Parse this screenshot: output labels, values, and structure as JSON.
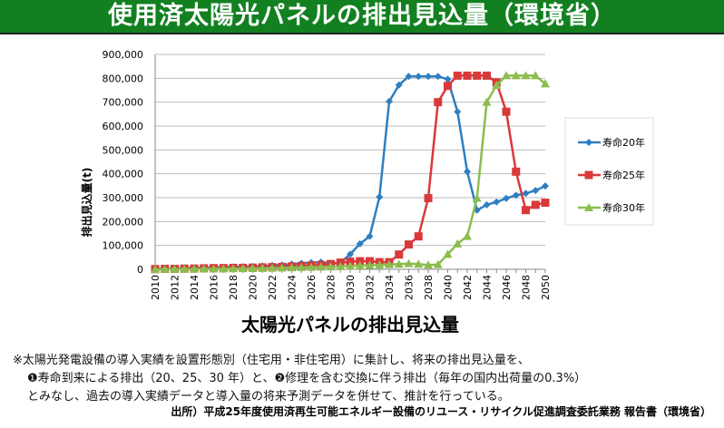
{
  "title": "使用済太陽光パネルの排出見込量（環境省）",
  "chart_data": {
    "type": "line",
    "title": "太陽光パネルの排出見込量",
    "ylabel": "排出見込量(t)",
    "xlabel": "",
    "ylim": [
      0,
      900000
    ],
    "yticks": [
      "0",
      "100,000",
      "200,000",
      "300,000",
      "400,000",
      "500,000",
      "600,000",
      "700,000",
      "800,000",
      "900,000"
    ],
    "x": [
      2010,
      2011,
      2012,
      2013,
      2014,
      2015,
      2016,
      2017,
      2018,
      2019,
      2020,
      2021,
      2022,
      2023,
      2024,
      2025,
      2026,
      2027,
      2028,
      2029,
      2030,
      2031,
      2032,
      2033,
      2034,
      2035,
      2036,
      2037,
      2038,
      2039,
      2040,
      2041,
      2042,
      2043,
      2044,
      2045,
      2046,
      2047,
      2048,
      2049,
      2050
    ],
    "xticks": [
      "2010",
      "2012",
      "2014",
      "2016",
      "2018",
      "2020",
      "2022",
      "2024",
      "2026",
      "2028",
      "2030",
      "2032",
      "2034",
      "2036",
      "2038",
      "2040",
      "2042",
      "2044",
      "2046",
      "2048",
      "2050"
    ],
    "grid": true,
    "legend": "right",
    "series": [
      {
        "name": "寿命20年",
        "color": "#2e7fc1",
        "marker": "diamond",
        "values": [
          2000,
          3000,
          4000,
          5000,
          6000,
          7000,
          8000,
          9000,
          10000,
          11000,
          12000,
          14000,
          16000,
          18000,
          22000,
          25000,
          28000,
          30000,
          25000,
          28000,
          63000,
          107000,
          138000,
          303000,
          703000,
          772000,
          808000,
          808000,
          808000,
          808000,
          796000,
          660000,
          409000,
          248000,
          270000,
          282000,
          297000,
          310000,
          318000,
          330000,
          349000
        ]
      },
      {
        "name": "寿命25年",
        "color": "#d9393a",
        "marker": "square",
        "values": [
          1000,
          2000,
          2000,
          3000,
          3000,
          4000,
          5000,
          5000,
          6000,
          6000,
          7000,
          8000,
          9000,
          10000,
          12000,
          14000,
          16000,
          18000,
          22000,
          28000,
          32000,
          34000,
          34000,
          30000,
          30000,
          62000,
          104000,
          138000,
          298000,
          700000,
          768000,
          811000,
          811000,
          811000,
          811000,
          783000,
          660000,
          409000,
          248000,
          270000,
          279000
        ]
      },
      {
        "name": "寿命30年",
        "color": "#8cbd4f",
        "marker": "triangle",
        "values": [
          0,
          500,
          1000,
          1000,
          1500,
          2000,
          2000,
          2500,
          3000,
          3500,
          4000,
          4500,
          5000,
          6000,
          7000,
          8000,
          9000,
          10000,
          11000,
          12000,
          14000,
          15000,
          17000,
          18000,
          20000,
          22000,
          24000,
          22000,
          18000,
          20000,
          63000,
          107000,
          138000,
          298000,
          700000,
          771000,
          811000,
          811000,
          811000,
          811000,
          777000
        ]
      }
    ]
  },
  "notes": [
    "※太陽光発電設備の導入実績を設置形態別（住宅用・非住宅用）に集計し、将来の排出見込量を、",
    "❶寿命到来による排出（20、25、30 年）と、❷修理を含む交換に伴う排出（毎年の国内出荷量の0.3%）",
    "とみなし、過去の導入実績データと導入量の将来予測データを併せて、推計を行っている。"
  ],
  "source": "出所）平成25年度使用済再生可能エネルギー設備のリユース・リサイクル促進調査委託業務 報告書（環境省）"
}
